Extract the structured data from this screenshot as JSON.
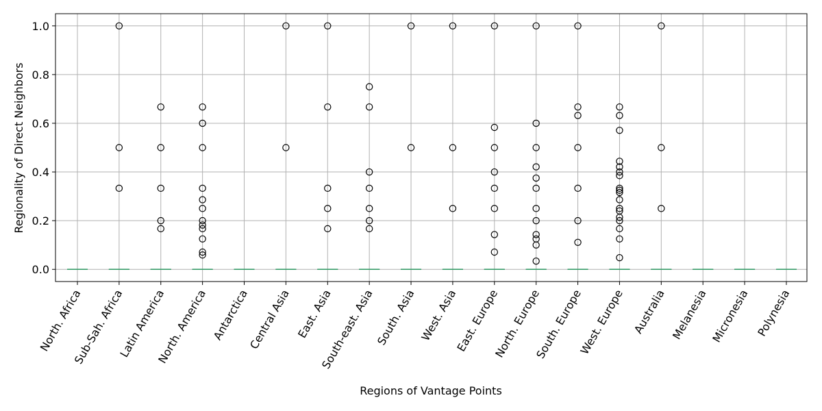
{
  "chart_data": {
    "type": "box",
    "title": "",
    "xlabel": "Regions of Vantage Points",
    "ylabel": "Regionality of Direct Neighbors",
    "ylim": [
      -0.05,
      1.05
    ],
    "yticks": [
      0.0,
      0.2,
      0.4,
      0.6,
      0.8,
      1.0
    ],
    "grid": true,
    "categories": [
      "North. Africa",
      "Sub-Sah. Africa",
      "Latin America",
      "North. America",
      "Antarctica",
      "Central Asia",
      "East. Asia",
      "South-east. Asia",
      "South. Asia",
      "West. Asia",
      "East. Europe",
      "North. Europe",
      "South. Europe",
      "West. Europe",
      "Australia",
      "Melanesia",
      "Micronesia",
      "Polynesia"
    ],
    "medians": [
      0,
      0,
      0,
      0,
      0,
      0,
      0,
      0,
      0,
      0,
      0,
      0,
      0,
      0,
      0,
      0,
      0,
      0
    ],
    "outliers": [
      [],
      [
        1.0,
        0.5,
        0.333
      ],
      [
        0.667,
        0.5,
        0.333,
        0.2,
        0.167
      ],
      [
        0.667,
        0.6,
        0.5,
        0.333,
        0.286,
        0.25,
        0.2,
        0.182,
        0.167,
        0.125,
        0.071,
        0.059
      ],
      [],
      [
        1.0,
        0.5
      ],
      [
        1.0,
        0.667,
        0.333,
        0.25,
        0.167
      ],
      [
        0.75,
        0.667,
        0.4,
        0.333,
        0.25,
        0.2,
        0.167
      ],
      [
        1.0,
        0.5
      ],
      [
        1.0,
        0.5,
        0.25
      ],
      [
        1.0,
        0.583,
        0.5,
        0.4,
        0.333,
        0.25,
        0.143,
        0.071
      ],
      [
        1.0,
        0.6,
        0.5,
        0.421,
        0.375,
        0.333,
        0.25,
        0.2,
        0.143,
        0.125,
        0.1,
        0.034
      ],
      [
        1.0,
        0.667,
        0.632,
        0.5,
        0.333,
        0.2,
        0.111
      ],
      [
        0.667,
        0.632,
        0.571,
        0.444,
        0.421,
        0.4,
        0.385,
        0.333,
        0.325,
        0.316,
        0.286,
        0.25,
        0.24,
        0.214,
        0.2,
        0.167,
        0.125,
        0.048
      ],
      [
        1.0,
        0.5,
        0.25
      ],
      [],
      [],
      []
    ],
    "colors": {
      "median": "#3a9d6a",
      "flier": "#000000",
      "grid": "#b0b0b0"
    }
  }
}
